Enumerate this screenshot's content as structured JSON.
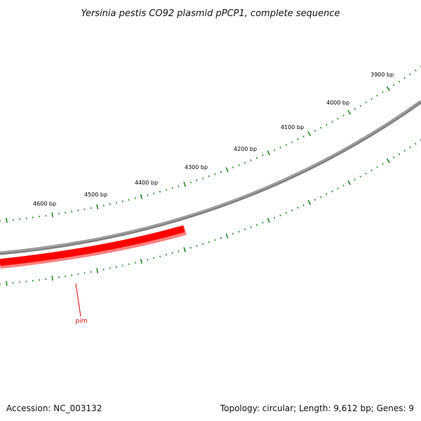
{
  "title": "Yersinia pestis CO92 plasmid pPCP1, complete sequence",
  "footer": {
    "accession": "Accession: NC_003132",
    "summary": "Topology: circular; Length: 9,612 bp; Genes: 9"
  },
  "colors": {
    "backbone": "#808080",
    "gene": "#ff0000",
    "gene_shadow": "#ff8080",
    "ticks": "#1a8a1a",
    "label_line": "#dd0000"
  },
  "scale_labels": [
    "4600 bp",
    "4500 bp",
    "4400 bp",
    "4300 bp",
    "4200 bp",
    "4100 bp",
    "4000 bp",
    "3900 bp"
  ],
  "genes": [
    {
      "name": "pim",
      "strand": "minus"
    }
  ]
}
